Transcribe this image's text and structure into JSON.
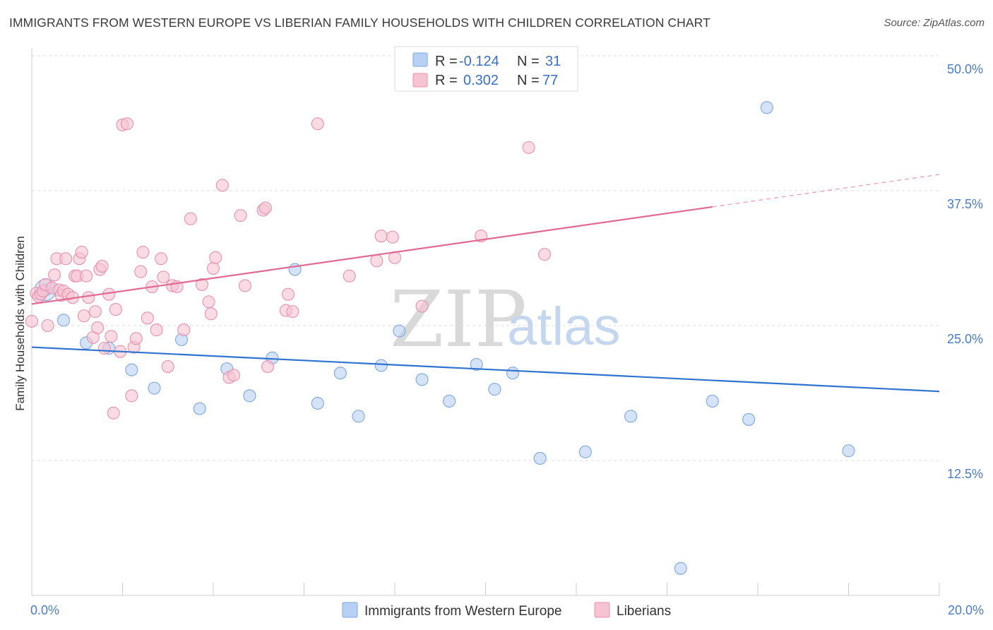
{
  "title": "IMMIGRANTS FROM WESTERN EUROPE VS LIBERIAN FAMILY HOUSEHOLDS WITH CHILDREN CORRELATION CHART",
  "source": "Source: ZipAtlas.com",
  "watermark": {
    "zip": "ZIP",
    "atlas": "atlas"
  },
  "colors": {
    "blue_fill": "#b8d0f3",
    "blue_stroke": "#7ea6e0",
    "blue_line": "#2f73d0",
    "pink_fill": "#f6c3d2",
    "pink_stroke": "#e891ad",
    "pink_line": "#e06a93",
    "grid": "#dddddd",
    "tick_text": "#4a7cc9"
  },
  "legend": {
    "rows": [
      {
        "r_label": "R =",
        "r_value": "-0.124",
        "n_label": "N =",
        "n_value": "31"
      },
      {
        "r_label": "R =",
        "r_value": "0.302",
        "n_label": "N =",
        "n_value": "77"
      }
    ]
  },
  "chart_data": {
    "type": "scatter",
    "title": "IMMIGRANTS FROM WESTERN EUROPE VS LIBERIAN FAMILY HOUSEHOLDS WITH CHILDREN CORRELATION CHART",
    "xlabel": "",
    "ylabel": "Family Households with Children",
    "xlim": [
      0,
      20
    ],
    "ylim": [
      0,
      50
    ],
    "x_tick_labels": [
      "0.0%",
      "20.0%"
    ],
    "y_ticks": [
      12.5,
      25.0,
      37.5,
      50.0
    ],
    "y_tick_labels": [
      "12.5%",
      "25.0%",
      "37.5%",
      "50.0%"
    ],
    "grid": true,
    "legend_position": "top-center",
    "series": [
      {
        "name": "Immigrants from Western Europe",
        "R": -0.124,
        "N": 31,
        "trend": {
          "x": [
            0,
            20
          ],
          "y": [
            23.0,
            18.9
          ]
        },
        "points": [
          [
            0.3,
            28.3
          ],
          [
            0.7,
            25.5
          ],
          [
            1.2,
            23.4
          ],
          [
            1.7,
            22.9
          ],
          [
            2.2,
            20.9
          ],
          [
            2.7,
            19.2
          ],
          [
            3.3,
            23.7
          ],
          [
            3.7,
            17.3
          ],
          [
            4.3,
            21.0
          ],
          [
            4.8,
            18.5
          ],
          [
            5.3,
            22.0
          ],
          [
            5.8,
            30.2
          ],
          [
            6.3,
            17.8
          ],
          [
            6.8,
            20.6
          ],
          [
            7.2,
            16.6
          ],
          [
            7.7,
            21.3
          ],
          [
            8.1,
            24.5
          ],
          [
            8.6,
            20.0
          ],
          [
            9.2,
            18.0
          ],
          [
            9.8,
            21.4
          ],
          [
            10.2,
            19.1
          ],
          [
            10.6,
            20.6
          ],
          [
            11.2,
            12.7
          ],
          [
            11.6,
            50.0
          ],
          [
            12.2,
            13.3
          ],
          [
            13.2,
            16.6
          ],
          [
            14.3,
            2.5
          ],
          [
            15.0,
            18.0
          ],
          [
            15.8,
            16.3
          ],
          [
            16.2,
            45.2
          ],
          [
            18.0,
            13.4
          ]
        ]
      },
      {
        "name": "Liberians",
        "R": 0.302,
        "N": 77,
        "trend": {
          "x": [
            0,
            15
          ],
          "y": [
            27.0,
            36.0
          ],
          "dashed_to": {
            "x": 20,
            "y": 39.0
          }
        },
        "points": [
          [
            0.0,
            25.4
          ],
          [
            0.1,
            28.0
          ],
          [
            0.15,
            27.7
          ],
          [
            0.2,
            27.9
          ],
          [
            0.25,
            28.2
          ],
          [
            0.3,
            28.8
          ],
          [
            0.35,
            25.0
          ],
          [
            0.45,
            28.5
          ],
          [
            0.5,
            29.7
          ],
          [
            0.55,
            31.2
          ],
          [
            0.6,
            28.3
          ],
          [
            0.65,
            27.8
          ],
          [
            0.7,
            28.2
          ],
          [
            0.75,
            31.2
          ],
          [
            0.8,
            27.9
          ],
          [
            0.9,
            27.6
          ],
          [
            0.95,
            29.6
          ],
          [
            1.0,
            29.6
          ],
          [
            1.05,
            31.2
          ],
          [
            1.1,
            31.8
          ],
          [
            1.15,
            25.9
          ],
          [
            1.2,
            29.6
          ],
          [
            1.25,
            27.6
          ],
          [
            1.35,
            23.9
          ],
          [
            1.4,
            26.3
          ],
          [
            1.45,
            24.8
          ],
          [
            1.5,
            30.2
          ],
          [
            1.55,
            30.5
          ],
          [
            1.6,
            22.9
          ],
          [
            1.7,
            27.9
          ],
          [
            1.75,
            24.0
          ],
          [
            1.8,
            16.9
          ],
          [
            1.85,
            26.5
          ],
          [
            1.95,
            22.6
          ],
          [
            2.0,
            43.6
          ],
          [
            2.1,
            43.7
          ],
          [
            2.2,
            18.5
          ],
          [
            2.25,
            23.0
          ],
          [
            2.3,
            23.8
          ],
          [
            2.4,
            30.0
          ],
          [
            2.45,
            31.8
          ],
          [
            2.55,
            25.7
          ],
          [
            2.65,
            28.6
          ],
          [
            2.75,
            24.6
          ],
          [
            2.85,
            31.2
          ],
          [
            2.9,
            29.5
          ],
          [
            3.0,
            21.2
          ],
          [
            3.1,
            28.7
          ],
          [
            3.2,
            28.6
          ],
          [
            3.35,
            24.6
          ],
          [
            3.5,
            34.9
          ],
          [
            3.75,
            28.8
          ],
          [
            3.9,
            27.2
          ],
          [
            3.95,
            26.1
          ],
          [
            4.0,
            30.3
          ],
          [
            4.05,
            31.3
          ],
          [
            4.2,
            38.0
          ],
          [
            4.35,
            20.2
          ],
          [
            4.45,
            20.4
          ],
          [
            4.6,
            35.2
          ],
          [
            4.7,
            28.7
          ],
          [
            5.1,
            35.7
          ],
          [
            5.15,
            35.9
          ],
          [
            5.2,
            21.2
          ],
          [
            5.6,
            26.4
          ],
          [
            5.65,
            27.9
          ],
          [
            5.75,
            26.3
          ],
          [
            6.3,
            43.7
          ],
          [
            7.0,
            29.6
          ],
          [
            7.6,
            31.0
          ],
          [
            7.7,
            33.3
          ],
          [
            7.95,
            33.2
          ],
          [
            8.0,
            31.3
          ],
          [
            8.6,
            26.8
          ],
          [
            9.9,
            33.3
          ],
          [
            10.95,
            41.5
          ],
          [
            11.3,
            31.6
          ]
        ]
      }
    ]
  }
}
